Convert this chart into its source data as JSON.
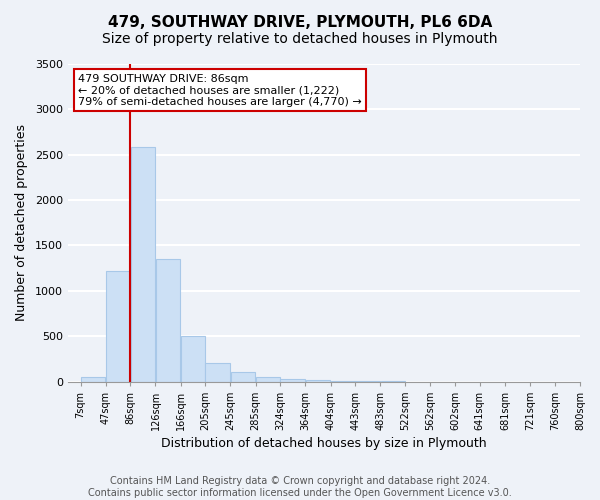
{
  "title": "479, SOUTHWAY DRIVE, PLYMOUTH, PL6 6DA",
  "subtitle": "Size of property relative to detached houses in Plymouth",
  "xlabel": "Distribution of detached houses by size in Plymouth",
  "ylabel": "Number of detached properties",
  "bar_color": "#cce0f5",
  "bar_edge_color": "#a8c8e8",
  "vline_color": "#cc0000",
  "vline_x": 86,
  "annotation_line1": "479 SOUTHWAY DRIVE: 86sqm",
  "annotation_line2": "← 20% of detached houses are smaller (1,222)",
  "annotation_line3": "79% of semi-detached houses are larger (4,770) →",
  "annotation_box_color": "#ffffff",
  "annotation_box_edge": "#cc0000",
  "bins": [
    7,
    47,
    86,
    126,
    166,
    205,
    245,
    285,
    324,
    364,
    404,
    443,
    483,
    522,
    562,
    602,
    641,
    681,
    721,
    760,
    800
  ],
  "bin_labels": [
    "7sqm",
    "47sqm",
    "86sqm",
    "126sqm",
    "166sqm",
    "205sqm",
    "245sqm",
    "285sqm",
    "324sqm",
    "364sqm",
    "404sqm",
    "443sqm",
    "483sqm",
    "522sqm",
    "562sqm",
    "602sqm",
    "641sqm",
    "681sqm",
    "721sqm",
    "760sqm",
    "800sqm"
  ],
  "counts": [
    50,
    1220,
    2590,
    1350,
    500,
    200,
    110,
    50,
    30,
    15,
    8,
    5,
    2,
    0,
    0,
    0,
    0,
    0,
    0,
    0
  ],
  "ylim": [
    0,
    3500
  ],
  "yticks": [
    0,
    500,
    1000,
    1500,
    2000,
    2500,
    3000,
    3500
  ],
  "footer_line1": "Contains HM Land Registry data © Crown copyright and database right 2024.",
  "footer_line2": "Contains public sector information licensed under the Open Government Licence v3.0.",
  "background_color": "#eef2f8",
  "plot_background": "#eef2f8",
  "grid_color": "#ffffff",
  "title_fontsize": 11,
  "subtitle_fontsize": 10,
  "footer_fontsize": 7
}
